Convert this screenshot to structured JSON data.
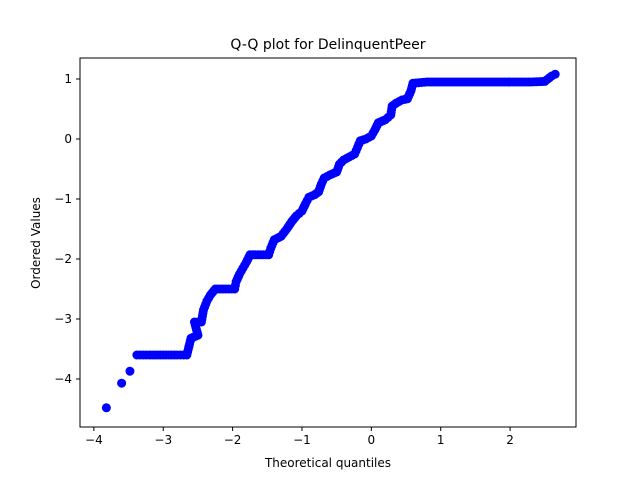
{
  "chart_data": {
    "type": "scatter",
    "title": "Q-Q plot for DelinquentPeer",
    "xlabel": "Theoretical quantiles",
    "ylabel": "Ordered Values",
    "xlim": [
      -4.2,
      2.95
    ],
    "ylim": [
      -4.8,
      1.35
    ],
    "xticks": [
      -4,
      -3,
      -2,
      -1,
      0,
      1,
      2
    ],
    "yticks": [
      -4,
      -3,
      -2,
      -1,
      0,
      1
    ],
    "grid": false,
    "legend": "none",
    "marker_color": "#0000ff",
    "series": [
      {
        "points": [
          [
            -3.82,
            -4.48
          ],
          [
            -3.6,
            -4.07
          ],
          [
            -3.48,
            -3.87
          ],
          [
            -3.38,
            -3.6
          ],
          [
            -3.2,
            -3.6
          ],
          [
            -3.0,
            -3.6
          ],
          [
            -2.8,
            -3.6
          ],
          [
            -2.66,
            -3.6
          ],
          [
            -2.6,
            -3.32
          ],
          [
            -2.5,
            -3.27
          ],
          [
            -2.55,
            -3.05
          ],
          [
            -2.45,
            -3.05
          ],
          [
            -2.42,
            -2.85
          ],
          [
            -2.37,
            -2.7
          ],
          [
            -2.32,
            -2.6
          ],
          [
            -2.25,
            -2.5
          ],
          [
            -2.1,
            -2.5
          ],
          [
            -1.97,
            -2.5
          ],
          [
            -1.95,
            -2.38
          ],
          [
            -1.9,
            -2.25
          ],
          [
            -1.85,
            -2.15
          ],
          [
            -1.8,
            -2.05
          ],
          [
            -1.75,
            -1.93
          ],
          [
            -1.6,
            -1.93
          ],
          [
            -1.48,
            -1.93
          ],
          [
            -1.45,
            -1.82
          ],
          [
            -1.4,
            -1.68
          ],
          [
            -1.3,
            -1.62
          ],
          [
            -1.22,
            -1.5
          ],
          [
            -1.15,
            -1.38
          ],
          [
            -1.08,
            -1.28
          ],
          [
            -1.0,
            -1.2
          ],
          [
            -0.95,
            -1.08
          ],
          [
            -0.9,
            -0.97
          ],
          [
            -0.82,
            -0.93
          ],
          [
            -0.76,
            -0.88
          ],
          [
            -0.72,
            -0.75
          ],
          [
            -0.68,
            -0.65
          ],
          [
            -0.6,
            -0.6
          ],
          [
            -0.5,
            -0.55
          ],
          [
            -0.46,
            -0.42
          ],
          [
            -0.4,
            -0.35
          ],
          [
            -0.32,
            -0.3
          ],
          [
            -0.24,
            -0.25
          ],
          [
            -0.2,
            -0.14
          ],
          [
            -0.16,
            -0.03
          ],
          [
            -0.08,
            0.0
          ],
          [
            0.0,
            0.05
          ],
          [
            0.05,
            0.15
          ],
          [
            0.1,
            0.27
          ],
          [
            0.2,
            0.32
          ],
          [
            0.28,
            0.4
          ],
          [
            0.3,
            0.55
          ],
          [
            0.36,
            0.6
          ],
          [
            0.44,
            0.65
          ],
          [
            0.52,
            0.67
          ],
          [
            0.57,
            0.8
          ],
          [
            0.6,
            0.93
          ],
          [
            0.8,
            0.95
          ],
          [
            1.1,
            0.95
          ],
          [
            1.4,
            0.95
          ],
          [
            1.7,
            0.95
          ],
          [
            2.0,
            0.95
          ],
          [
            2.3,
            0.95
          ],
          [
            2.5,
            0.96
          ],
          [
            2.6,
            1.05
          ],
          [
            2.65,
            1.08
          ]
        ]
      }
    ]
  }
}
